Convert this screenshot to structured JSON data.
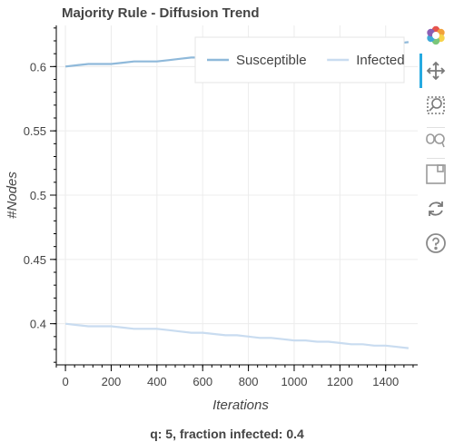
{
  "chart_data": {
    "type": "line",
    "title": "Majority Rule - Diffusion Trend",
    "xlabel": "Iterations",
    "ylabel": "#Nodes",
    "xlim": [
      -40,
      1540
    ],
    "ylim": [
      0.368,
      0.632
    ],
    "xticks": [
      0,
      200,
      400,
      600,
      800,
      1000,
      1200,
      1400
    ],
    "yticks": [
      0.4,
      0.45,
      0.5,
      0.55,
      0.6
    ],
    "ytick_labels": [
      "0.4",
      "0.45",
      "0.5",
      "0.55",
      "0.6"
    ],
    "grid": true,
    "legend_position": "top-right",
    "series": [
      {
        "name": "Susceptible",
        "color": "#8fb9da",
        "x": [
          0,
          50,
          100,
          150,
          200,
          250,
          300,
          350,
          400,
          450,
          500,
          550,
          600,
          650,
          700,
          750,
          800,
          850,
          900,
          950,
          1000,
          1050,
          1100,
          1150,
          1200,
          1250,
          1300,
          1350,
          1400,
          1450,
          1500
        ],
        "values": [
          0.6,
          0.601,
          0.602,
          0.602,
          0.602,
          0.603,
          0.604,
          0.604,
          0.604,
          0.605,
          0.606,
          0.607,
          0.607,
          0.608,
          0.609,
          0.609,
          0.61,
          0.611,
          0.611,
          0.612,
          0.613,
          0.613,
          0.614,
          0.614,
          0.615,
          0.616,
          0.616,
          0.617,
          0.617,
          0.618,
          0.619
        ]
      },
      {
        "name": "Infected",
        "color": "#c9dcf0",
        "x": [
          0,
          50,
          100,
          150,
          200,
          250,
          300,
          350,
          400,
          450,
          500,
          550,
          600,
          650,
          700,
          750,
          800,
          850,
          900,
          950,
          1000,
          1050,
          1100,
          1150,
          1200,
          1250,
          1300,
          1350,
          1400,
          1450,
          1500
        ],
        "values": [
          0.4,
          0.399,
          0.398,
          0.398,
          0.398,
          0.397,
          0.396,
          0.396,
          0.396,
          0.395,
          0.394,
          0.393,
          0.393,
          0.392,
          0.391,
          0.391,
          0.39,
          0.389,
          0.389,
          0.388,
          0.387,
          0.387,
          0.386,
          0.386,
          0.385,
          0.384,
          0.384,
          0.383,
          0.383,
          0.382,
          0.381
        ]
      }
    ],
    "subtitle": "q: 5, fraction infected: 0.4"
  },
  "toolbar": {
    "tools": [
      "bokeh-logo-icon",
      "pan-icon",
      "box-zoom-icon",
      "wheel-zoom-icon",
      "save-icon",
      "reset-icon",
      "help-icon"
    ]
  }
}
